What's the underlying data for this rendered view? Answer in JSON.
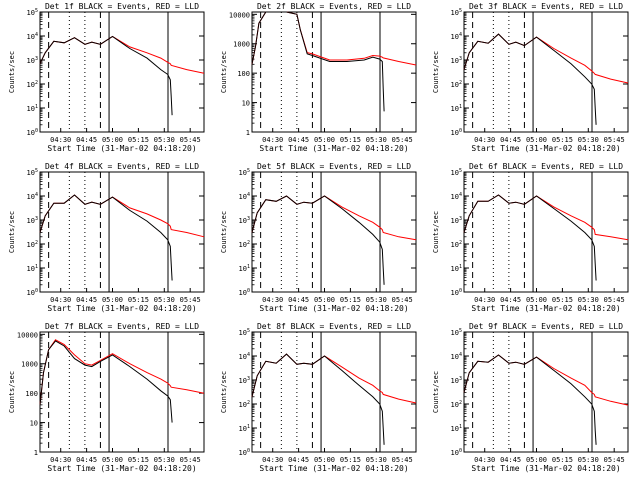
{
  "colors": {
    "events": "#000000",
    "lld": "#ff0000",
    "background": "#ffffff"
  },
  "xtick_labels": [
    "04:30",
    "04:45",
    "05:00",
    "05:15",
    "05:30",
    "05:45"
  ],
  "xlabel": "Start Time (31-Mar-02 04:18:20)",
  "ylabel": "Counts/sec",
  "chart_data": [
    {
      "type": "line",
      "title": "Det 1f BLACK = Events, RED = LLD",
      "xlabel": "Start Time (31-Mar-02 04:18:20)",
      "ylabel": "Counts/sec",
      "yscale": "log",
      "ylim": [
        1,
        100000
      ],
      "ytick_labels": [
        "10^0",
        "10^1",
        "10^2",
        "10^3",
        "10^4",
        "10^5"
      ],
      "xtick_labels": [
        "04:30",
        "04:45",
        "05:00",
        "05:15",
        "05:30",
        "05:45"
      ],
      "series": [
        {
          "name": "BLACK = Events",
          "x": [
            0,
            3,
            8,
            14,
            20,
            26,
            30,
            35,
            42,
            52,
            62,
            70,
            74,
            75.5,
            76,
            76.5
          ],
          "values": [
            700,
            2000,
            6000,
            5200,
            8500,
            4500,
            5500,
            4500,
            9500,
            3000,
            1200,
            400,
            250,
            150,
            30,
            5
          ]
        },
        {
          "name": "RED = LLD",
          "x": [
            0,
            3,
            8,
            14,
            20,
            26,
            30,
            35,
            42,
            52,
            62,
            70,
            74,
            75.5,
            76,
            85,
            95
          ],
          "values": [
            700,
            2000,
            6000,
            5200,
            8500,
            4500,
            5500,
            4500,
            9500,
            3500,
            2000,
            1200,
            800,
            700,
            600,
            400,
            280
          ]
        }
      ]
    },
    {
      "type": "line",
      "title": "Det 2f BLACK = Events, RED = LLD",
      "xlabel": "Start Time (31-Mar-02 04:18:20)",
      "ylabel": "Counts/sec",
      "yscale": "log",
      "ylim": [
        1,
        12000
      ],
      "ytick_labels": [
        "1",
        "10",
        "100",
        "1000",
        "10000"
      ],
      "xtick_labels": [
        "04:30",
        "04:45",
        "05:00",
        "05:15",
        "05:30",
        "05:45"
      ],
      "series": [
        {
          "name": "BLACK = Events",
          "x": [
            0,
            2,
            4,
            8,
            14,
            20,
            26,
            28,
            32,
            35,
            45,
            55,
            65,
            70,
            74,
            75.5,
            76,
            76.5
          ],
          "values": [
            200,
            800,
            5000,
            12000,
            12000,
            12000,
            10000,
            3000,
            450,
            400,
            250,
            250,
            280,
            350,
            300,
            250,
            30,
            5
          ]
        },
        {
          "name": "RED = LLD",
          "x": [
            0,
            2,
            4,
            8,
            14,
            20,
            26,
            28,
            32,
            35,
            45,
            55,
            65,
            70,
            74,
            75.5,
            76,
            85,
            95
          ],
          "values": [
            200,
            800,
            5000,
            12000,
            12000,
            12000,
            10000,
            3000,
            500,
            450,
            280,
            280,
            320,
            400,
            380,
            350,
            330,
            250,
            190
          ]
        }
      ]
    },
    {
      "type": "line",
      "title": "Det 3f BLACK = Events, RED = LLD",
      "xlabel": "Start Time (31-Mar-02 04:18:20)",
      "ylabel": "Counts/sec",
      "yscale": "log",
      "ylim": [
        1,
        100000
      ],
      "ytick_labels": [
        "10^0",
        "10^1",
        "10^2",
        "10^3",
        "10^4",
        "10^5"
      ],
      "xtick_labels": [
        "04:30",
        "04:45",
        "05:00",
        "05:15",
        "05:30",
        "05:45"
      ],
      "series": [
        {
          "name": "BLACK = Events",
          "x": [
            0,
            3,
            8,
            14,
            20,
            26,
            30,
            35,
            42,
            52,
            62,
            70,
            74,
            75.5,
            76,
            76.5
          ],
          "values": [
            400,
            2000,
            6000,
            5000,
            12000,
            4500,
            5500,
            4000,
            9000,
            2500,
            700,
            200,
            100,
            60,
            10,
            2
          ]
        },
        {
          "name": "RED = LLD",
          "x": [
            0,
            3,
            8,
            14,
            20,
            26,
            30,
            35,
            42,
            52,
            62,
            70,
            74,
            75.5,
            76,
            85,
            95
          ],
          "values": [
            400,
            2000,
            6000,
            5000,
            12000,
            4500,
            5500,
            4000,
            9000,
            3000,
            1200,
            600,
            350,
            280,
            250,
            160,
            110
          ]
        }
      ]
    },
    {
      "type": "line",
      "title": "Det 4f BLACK = Events, RED = LLD",
      "xlabel": "Start Time (31-Mar-02 04:18:20)",
      "ylabel": "Counts/sec",
      "yscale": "log",
      "ylim": [
        1,
        100000
      ],
      "ytick_labels": [
        "10^0",
        "10^1",
        "10^2",
        "10^3",
        "10^4",
        "10^5"
      ],
      "xtick_labels": [
        "04:30",
        "04:45",
        "05:00",
        "05:15",
        "05:30",
        "05:45"
      ],
      "series": [
        {
          "name": "BLACK = Events",
          "x": [
            0,
            3,
            8,
            14,
            20,
            26,
            30,
            35,
            42,
            52,
            62,
            70,
            74,
            75.5,
            76,
            76.5
          ],
          "values": [
            300,
            1500,
            5000,
            5000,
            11000,
            4500,
            5500,
            4500,
            9000,
            2500,
            900,
            300,
            150,
            80,
            15,
            3
          ]
        },
        {
          "name": "RED = LLD",
          "x": [
            0,
            3,
            8,
            14,
            20,
            26,
            30,
            35,
            42,
            52,
            62,
            70,
            74,
            75.5,
            76,
            85,
            95
          ],
          "values": [
            300,
            1500,
            5000,
            5000,
            11000,
            4500,
            5500,
            4500,
            9000,
            3200,
            1800,
            1000,
            700,
            550,
            400,
            300,
            200
          ]
        }
      ]
    },
    {
      "type": "line",
      "title": "Det 5f BLACK = Events, RED = LLD",
      "xlabel": "Start Time (31-Mar-02 04:18:20)",
      "ylabel": "Counts/sec",
      "yscale": "log",
      "ylim": [
        1,
        100000
      ],
      "ytick_labels": [
        "10^0",
        "10^1",
        "10^2",
        "10^3",
        "10^4",
        "10^5"
      ],
      "xtick_labels": [
        "04:30",
        "04:45",
        "05:00",
        "05:15",
        "05:30",
        "05:45"
      ],
      "series": [
        {
          "name": "BLACK = Events",
          "x": [
            0,
            3,
            8,
            14,
            20,
            26,
            30,
            35,
            42,
            52,
            62,
            70,
            74,
            75.5,
            76,
            76.5
          ],
          "values": [
            300,
            2000,
            7000,
            6000,
            10000,
            4500,
            5500,
            5000,
            10000,
            3000,
            800,
            250,
            120,
            60,
            10,
            2
          ]
        },
        {
          "name": "RED = LLD",
          "x": [
            0,
            3,
            8,
            14,
            20,
            26,
            30,
            35,
            42,
            52,
            62,
            70,
            74,
            75.5,
            76,
            85,
            95
          ],
          "values": [
            300,
            2000,
            7000,
            6000,
            10000,
            4500,
            5500,
            5000,
            10000,
            3500,
            1500,
            800,
            500,
            400,
            300,
            200,
            150
          ]
        }
      ]
    },
    {
      "type": "line",
      "title": "Det 6f BLACK = Events, RED = LLD",
      "xlabel": "Start Time (31-Mar-02 04:18:20)",
      "ylabel": "Counts/sec",
      "yscale": "log",
      "ylim": [
        1,
        100000
      ],
      "ytick_labels": [
        "10^0",
        "10^1",
        "10^2",
        "10^3",
        "10^4",
        "10^5"
      ],
      "xtick_labels": [
        "04:30",
        "04:45",
        "05:00",
        "05:15",
        "05:30",
        "05:45"
      ],
      "series": [
        {
          "name": "BLACK = Events",
          "x": [
            0,
            3,
            8,
            14,
            20,
            26,
            30,
            35,
            42,
            52,
            62,
            70,
            74,
            75.5,
            76,
            76.5
          ],
          "values": [
            300,
            1500,
            6000,
            6000,
            11000,
            5000,
            5500,
            4500,
            10000,
            3000,
            900,
            300,
            150,
            80,
            15,
            3
          ]
        },
        {
          "name": "RED = LLD",
          "x": [
            0,
            3,
            8,
            14,
            20,
            26,
            30,
            35,
            42,
            52,
            62,
            70,
            74,
            75.5,
            76,
            85,
            95
          ],
          "values": [
            300,
            1500,
            6000,
            6000,
            11000,
            5000,
            5500,
            4500,
            10000,
            3500,
            1500,
            800,
            500,
            400,
            250,
            200,
            150
          ]
        }
      ]
    },
    {
      "type": "line",
      "title": "Det 7f BLACK = Events, RED = LLD",
      "xlabel": "Start Time (31-Mar-02 04:18:20)",
      "ylabel": "Counts/sec",
      "yscale": "log",
      "ylim": [
        1,
        12000
      ],
      "ytick_labels": [
        "1",
        "10",
        "100",
        "1000",
        "10000"
      ],
      "xtick_labels": [
        "04:30",
        "04:45",
        "05:00",
        "05:15",
        "05:30",
        "05:45"
      ],
      "series": [
        {
          "name": "BLACK = Events",
          "x": [
            0,
            2,
            5,
            9,
            14,
            20,
            26,
            30,
            35,
            42,
            52,
            62,
            70,
            74,
            75.5,
            76,
            76.5
          ],
          "values": [
            40,
            500,
            3000,
            6000,
            4000,
            1500,
            900,
            800,
            1200,
            2000,
            800,
            300,
            120,
            80,
            60,
            25,
            10
          ]
        },
        {
          "name": "RED = LLD",
          "x": [
            0,
            2,
            5,
            9,
            14,
            20,
            26,
            30,
            35,
            42,
            52,
            62,
            70,
            74,
            75.5,
            76,
            85,
            95
          ],
          "values": [
            40,
            500,
            3000,
            6500,
            4500,
            2000,
            1000,
            900,
            1300,
            2200,
            1000,
            500,
            300,
            220,
            180,
            160,
            130,
            100
          ]
        }
      ]
    },
    {
      "type": "line",
      "title": "Det 8f BLACK = Events, RED = LLD",
      "xlabel": "Start Time (31-Mar-02 04:18:20)",
      "ylabel": "Counts/sec",
      "yscale": "log",
      "ylim": [
        1,
        100000
      ],
      "ytick_labels": [
        "10^0",
        "10^1",
        "10^2",
        "10^3",
        "10^4",
        "10^5"
      ],
      "xtick_labels": [
        "04:30",
        "04:45",
        "05:00",
        "05:15",
        "05:30",
        "05:45"
      ],
      "series": [
        {
          "name": "BLACK = Events",
          "x": [
            0,
            3,
            8,
            14,
            20,
            26,
            30,
            35,
            42,
            52,
            62,
            70,
            74,
            75.5,
            76,
            76.5
          ],
          "values": [
            200,
            1500,
            6000,
            5000,
            12000,
            4500,
            5000,
            4500,
            10000,
            2500,
            600,
            200,
            100,
            50,
            10,
            2
          ]
        },
        {
          "name": "RED = LLD",
          "x": [
            0,
            3,
            8,
            14,
            20,
            26,
            30,
            35,
            42,
            52,
            62,
            70,
            74,
            75.5,
            76,
            85,
            95
          ],
          "values": [
            200,
            1500,
            6000,
            5000,
            12000,
            4500,
            5000,
            4500,
            10000,
            3500,
            1200,
            600,
            350,
            300,
            250,
            160,
            110
          ]
        }
      ]
    },
    {
      "type": "line",
      "title": "Det 9f BLACK = Events, RED = LLD",
      "xlabel": "Start Time (31-Mar-02 04:18:20)",
      "ylabel": "Counts/sec",
      "yscale": "log",
      "ylim": [
        1,
        100000
      ],
      "ytick_labels": [
        "10^0",
        "10^1",
        "10^2",
        "10^3",
        "10^4",
        "10^5"
      ],
      "xtick_labels": [
        "04:30",
        "04:45",
        "05:00",
        "05:15",
        "05:30",
        "05:45"
      ],
      "series": [
        {
          "name": "BLACK = Events",
          "x": [
            0,
            3,
            8,
            14,
            20,
            26,
            30,
            35,
            42,
            52,
            62,
            70,
            74,
            75.5,
            76,
            76.5
          ],
          "values": [
            300,
            2000,
            6000,
            5500,
            11000,
            5000,
            5500,
            4500,
            9000,
            2500,
            700,
            200,
            100,
            50,
            8,
            2
          ]
        },
        {
          "name": "RED = LLD",
          "x": [
            0,
            3,
            8,
            14,
            20,
            26,
            30,
            35,
            42,
            52,
            62,
            70,
            74,
            75.5,
            76,
            85,
            95
          ],
          "values": [
            300,
            2000,
            6000,
            5500,
            11000,
            5000,
            5500,
            4500,
            9000,
            3000,
            1200,
            600,
            300,
            250,
            200,
            130,
            90
          ]
        }
      ]
    }
  ]
}
